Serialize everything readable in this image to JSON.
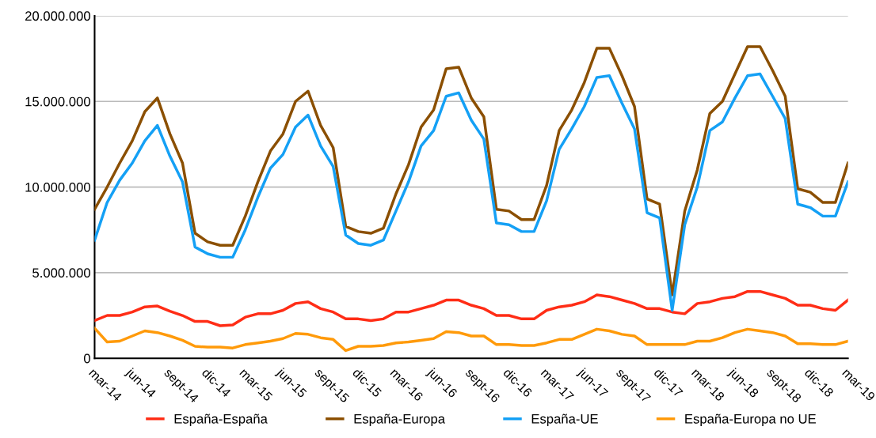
{
  "chart_data": {
    "type": "line",
    "categories": [
      "mar-14",
      null,
      null,
      "jun-14",
      null,
      null,
      "sept-14",
      null,
      null,
      "dic-14",
      null,
      null,
      "mar-15",
      null,
      null,
      "jun-15",
      null,
      null,
      "sept-15",
      null,
      null,
      "dic-15",
      null,
      null,
      "mar-16",
      null,
      null,
      "jun-16",
      null,
      null,
      "sept-16",
      null,
      null,
      "dic-16",
      null,
      null,
      "mar-17",
      null,
      null,
      "jun-17",
      null,
      null,
      "sept-17",
      null,
      null,
      "dic-17",
      null,
      null,
      "mar-18",
      null,
      null,
      "jun-18",
      null,
      null,
      "sept-18",
      null,
      null,
      "dic-18",
      null,
      null,
      "mar-19"
    ],
    "series": [
      {
        "name": "España-España",
        "color": "#ff2d16",
        "values": [
          2200000,
          2500000,
          2500000,
          2700000,
          3000000,
          3050000,
          2750000,
          2500000,
          2150000,
          2150000,
          1900000,
          1950000,
          2400000,
          2600000,
          2600000,
          2800000,
          3200000,
          3300000,
          2900000,
          2700000,
          2300000,
          2300000,
          2200000,
          2300000,
          2700000,
          2700000,
          2900000,
          3100000,
          3400000,
          3400000,
          3100000,
          2900000,
          2500000,
          2500000,
          2300000,
          2300000,
          2800000,
          3000000,
          3100000,
          3300000,
          3700000,
          3600000,
          3400000,
          3200000,
          2900000,
          2900000,
          2700000,
          2600000,
          3200000,
          3300000,
          3500000,
          3600000,
          3900000,
          3900000,
          3700000,
          3500000,
          3100000,
          3100000,
          2900000,
          2800000,
          3400000
        ]
      },
      {
        "name": "España-Europa",
        "color": "#8b4f00",
        "values": [
          8700000,
          10000000,
          11400000,
          12700000,
          14400000,
          15200000,
          13100000,
          11400000,
          7300000,
          6800000,
          6600000,
          6600000,
          8300000,
          10300000,
          12100000,
          13100000,
          15000000,
          15600000,
          13600000,
          12300000,
          7700000,
          7400000,
          7300000,
          7600000,
          9600000,
          11300000,
          13500000,
          14500000,
          16900000,
          17000000,
          15200000,
          14100000,
          8700000,
          8600000,
          8100000,
          8100000,
          10100000,
          13300000,
          14500000,
          16100000,
          18100000,
          18100000,
          16500000,
          14700000,
          9300000,
          9000000,
          3700000,
          8600000,
          11000000,
          14300000,
          15000000,
          16600000,
          18200000,
          18200000,
          16800000,
          15300000,
          9900000,
          9700000,
          9100000,
          9100000,
          11400000
        ]
      },
      {
        "name": "España-UE",
        "color": "#14a0f5",
        "values": [
          6900000,
          9100000,
          10400000,
          11400000,
          12700000,
          13600000,
          11800000,
          10300000,
          6500000,
          6100000,
          5900000,
          5900000,
          7500000,
          9400000,
          11100000,
          11900000,
          13500000,
          14200000,
          12400000,
          11200000,
          7200000,
          6700000,
          6600000,
          6900000,
          8600000,
          10300000,
          12400000,
          13300000,
          15300000,
          15500000,
          13900000,
          12800000,
          7900000,
          7800000,
          7400000,
          7400000,
          9200000,
          12200000,
          13400000,
          14700000,
          16400000,
          16500000,
          14900000,
          13400000,
          8500000,
          8200000,
          2800000,
          7800000,
          10000000,
          13300000,
          13800000,
          15200000,
          16500000,
          16600000,
          15300000,
          14000000,
          9000000,
          8800000,
          8300000,
          8300000,
          10300000
        ]
      },
      {
        "name": "España-Europa no UE",
        "color": "#ff9a0a",
        "values": [
          1750000,
          950000,
          1000000,
          1300000,
          1600000,
          1500000,
          1300000,
          1050000,
          700000,
          650000,
          650000,
          600000,
          800000,
          900000,
          1000000,
          1150000,
          1450000,
          1400000,
          1200000,
          1100000,
          450000,
          700000,
          700000,
          750000,
          900000,
          950000,
          1050000,
          1150000,
          1550000,
          1500000,
          1300000,
          1300000,
          800000,
          800000,
          750000,
          750000,
          900000,
          1100000,
          1100000,
          1400000,
          1700000,
          1600000,
          1400000,
          1300000,
          800000,
          800000,
          800000,
          800000,
          1000000,
          1000000,
          1200000,
          1500000,
          1700000,
          1600000,
          1500000,
          1300000,
          850000,
          850000,
          800000,
          800000,
          1000000
        ]
      }
    ],
    "ylim": [
      0,
      20000000
    ],
    "yticks": [
      0,
      {
        "value": 5000000,
        "label": "5.000.000"
      },
      {
        "value": 10000000,
        "label": "10.000.000"
      },
      {
        "value": 15000000,
        "label": "15.000.000"
      },
      {
        "value": 20000000,
        "label": "20.000.000"
      }
    ],
    "grid": "y",
    "legend": "bottom",
    "marker": "none",
    "line_style": "solid"
  }
}
